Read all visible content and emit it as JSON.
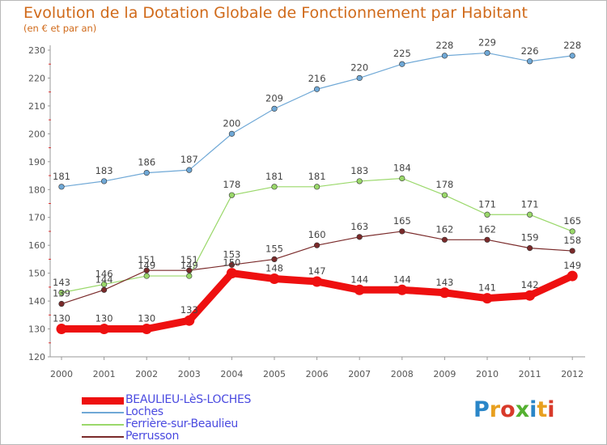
{
  "title": "Evolution de la Dotation Globale de Fonctionnement par Habitant",
  "subtitle": "(en € et par an)",
  "logo": {
    "text": "Proxiti",
    "colors": [
      "#2a86c8",
      "#e8a020",
      "#d83a2a",
      "#54b030",
      "#2a86c8",
      "#e8a020",
      "#d83a2a"
    ]
  },
  "chart_data": {
    "type": "line",
    "title": "Evolution de la Dotation Globale de Fonctionnement par Habitant",
    "subtitle": "(en € et par an)",
    "x": [
      "2000",
      "2001",
      "2002",
      "2003",
      "2004",
      "2005",
      "2006",
      "2007",
      "2008",
      "2009",
      "2010",
      "2011",
      "2012"
    ],
    "ylim": [
      120,
      230
    ],
    "yticks": [
      120,
      130,
      140,
      150,
      160,
      170,
      180,
      190,
      200,
      210,
      220,
      230
    ],
    "grid": false,
    "legend_position": "bottom-left",
    "series": [
      {
        "name": "BEAULIEU-LèS-LOCHES",
        "color": "#ee1010",
        "values": [
          130,
          130,
          130,
          133,
          150,
          148,
          147,
          144,
          144,
          143,
          141,
          142,
          149
        ],
        "labels": [
          "130",
          "130",
          "130",
          "133",
          "150",
          "148",
          "147",
          "144",
          "144",
          "143",
          "141",
          "142",
          "149"
        ],
        "emphasis": true
      },
      {
        "name": "Loches",
        "color": "#6fa8d6",
        "values": [
          181,
          183,
          186,
          187,
          200,
          209,
          216,
          220,
          225,
          228,
          229,
          226,
          228
        ],
        "labels": [
          "181",
          "183",
          "186",
          "187",
          "200",
          "209",
          "216",
          "220",
          "225",
          "228",
          "229",
          "226",
          "228"
        ]
      },
      {
        "name": "Ferrière-sur-Beaulieu",
        "color": "#9ad86a",
        "values": [
          143,
          146,
          149,
          149,
          178,
          181,
          181,
          183,
          184,
          178,
          171,
          171,
          165
        ],
        "labels": [
          "143",
          "146",
          "149",
          "149",
          "178",
          "181",
          "181",
          "183",
          "184",
          "178",
          "171",
          "171",
          "165"
        ]
      },
      {
        "name": "Perrusson",
        "color": "#7a2a2a",
        "values": [
          139,
          144,
          151,
          151,
          153,
          155,
          160,
          163,
          165,
          162,
          162,
          159,
          158
        ],
        "labels": [
          "139",
          "144",
          "151",
          "151",
          "153",
          "155",
          "160",
          "163",
          "165",
          "162",
          "162",
          "159",
          "158"
        ]
      }
    ]
  }
}
